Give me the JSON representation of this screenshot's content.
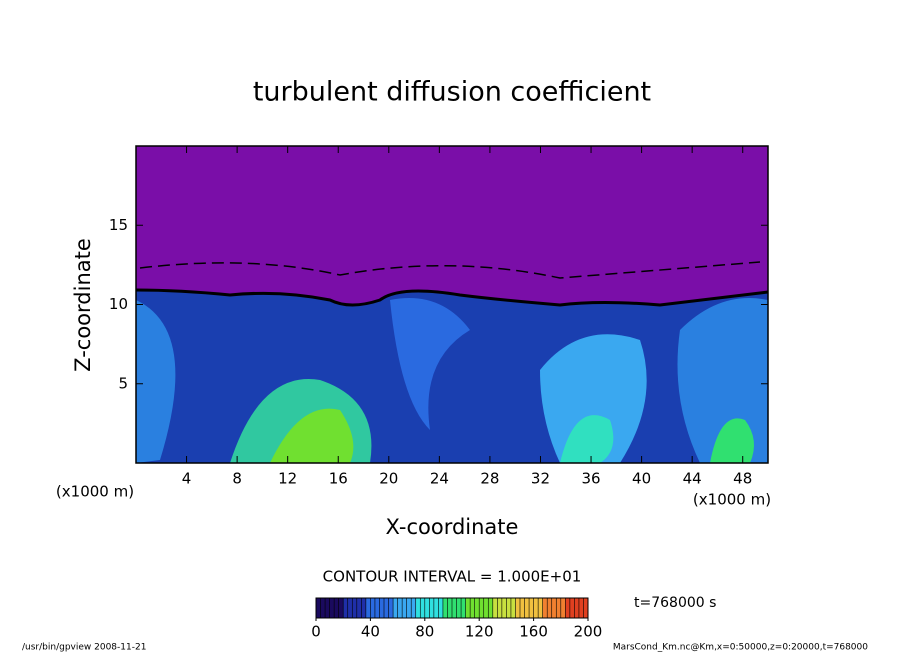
{
  "chart_data": {
    "type": "contour",
    "title": "turbulent diffusion coefficient",
    "xlabel": "X-coordinate",
    "ylabel": "Z-coordinate",
    "x_unit": "(x1000 m)",
    "xlim": [
      0,
      50
    ],
    "xticks": [
      4,
      8,
      12,
      16,
      20,
      24,
      28,
      32,
      36,
      40,
      44,
      48
    ],
    "ylim": [
      0,
      20
    ],
    "yticks": [
      5,
      10,
      15
    ],
    "contour_interval": "CONTOUR INTERVAL = 1.000E+01",
    "time": "t=768000 s",
    "colorbar": {
      "clim": [
        0,
        200
      ],
      "ticks": [
        0,
        40,
        80,
        120,
        160,
        200
      ],
      "colors": [
        "#1a0a5e",
        "#1f2fa8",
        "#2a6ae0",
        "#3aa8f0",
        "#30e0e0",
        "#30e070",
        "#70e030",
        "#c8e040",
        "#f0c040",
        "#f08030",
        "#e04020"
      ]
    },
    "footer_left": "/usr/bin/gpview  2008-11-21",
    "footer_right": "MarsCond_Km.nc@Km,x=0:50000,z=0:20000,t=768000"
  }
}
